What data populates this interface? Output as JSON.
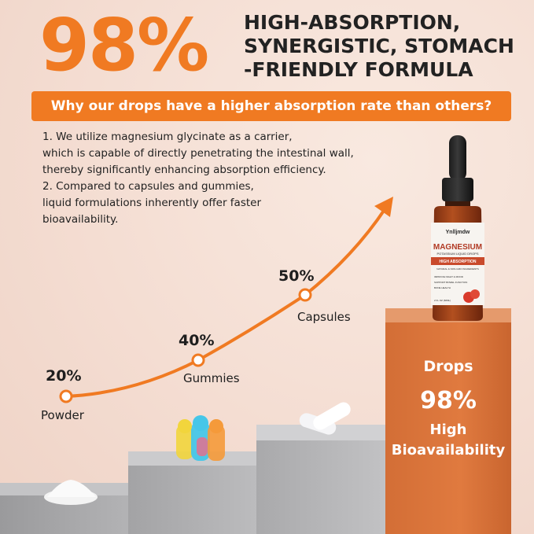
{
  "hero": {
    "percent": "98%",
    "headline": [
      "HIGH-ABSORPTION,",
      "SYNERGISTIC, STOMACH",
      "-FRIENDLY FORMULA"
    ]
  },
  "banner": {
    "text": "Why our drops have a higher absorption rate than others?"
  },
  "body_lines": [
    "1. We utilize magnesium glycinate as a carrier,",
    "which is capable of directly penetrating the intestinal wall,",
    "thereby significantly enhancing absorption efficiency.",
    "2. Compared to capsules and gummies,",
    "liquid formulations inherently offer faster",
    "bioavailability."
  ],
  "points": [
    {
      "percent": "20%",
      "label": "Powder"
    },
    {
      "percent": "40%",
      "label": "Gummies"
    },
    {
      "percent": "50%",
      "label": "Capsules"
    }
  ],
  "drops": {
    "title": "Drops",
    "percent": "98%",
    "line1": "High",
    "line2": "Bioavailability"
  },
  "bottle": {
    "brand": "Ynlljmdw",
    "product": "MAGNESIUM",
    "subtitle": "POTASSIUM LIQUID DROPS",
    "band": "HIGH ABSORPTION",
    "tagline": "NATURAL & NON-GMO INGREDIENTS",
    "bullets": [
      "IMPROVE NIGHT & MOOD",
      "SUPPORT BOWEL FUNCTION",
      "BONE HEALTH"
    ],
    "size": "2 FL OZ (60ML)"
  },
  "colors": {
    "accent": "#f07a22",
    "background": "#f4ddd2",
    "drops_block": "#e07a3f",
    "step_gray": "#a7a7a9"
  }
}
